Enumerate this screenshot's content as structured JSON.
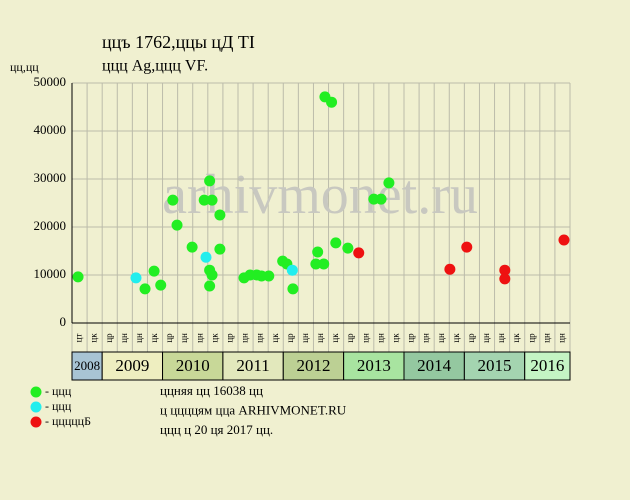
{
  "chart_data": {
    "type": "scatter",
    "title": "ццъ 1762,ццы цД TI",
    "subtitle": "ццц Ag,ццц VF.",
    "ylabel": "цц,цц",
    "watermark": "arhivmonet.ru",
    "xlim": [
      2008.5,
      2016.75
    ],
    "ylim": [
      0,
      50000
    ],
    "yticks": [
      0,
      10000,
      20000,
      30000,
      40000,
      50000
    ],
    "grid": true,
    "quarter_labels": [
      "цт",
      "цк",
      "цр",
      "цн",
      "цн",
      "цк",
      "цр",
      "цн",
      "цн",
      "цк",
      "цр",
      "цн",
      "цн",
      "цк",
      "цр",
      "цн",
      "цн",
      "цк",
      "цр",
      "цн",
      "цн",
      "цк",
      "цр",
      "цн",
      "цн",
      "цк",
      "цр",
      "цн",
      "цн",
      "цк",
      "цр",
      "цн",
      "цн"
    ],
    "year_bands": [
      {
        "label": "2008",
        "color": "#a8c4d4"
      },
      {
        "label": "2009",
        "color": "#eeeec0"
      },
      {
        "label": "2010",
        "color": "#c8d898"
      },
      {
        "label": "2011",
        "color": "#e2e8bc"
      },
      {
        "label": "2012",
        "color": "#bcd094"
      },
      {
        "label": "2013",
        "color": "#a8e4a0"
      },
      {
        "label": "2014",
        "color": "#94c8a0"
      },
      {
        "label": "2015",
        "color": "#a4d4b0"
      },
      {
        "label": "2016",
        "color": "#c4f4c4"
      }
    ],
    "series": [
      {
        "name": "- ццц",
        "color": "#22ee22",
        "x": [
          2008.6,
          2009.71,
          2009.86,
          2009.97,
          2010.17,
          2010.24,
          2010.49,
          2010.69,
          2010.78,
          2010.78,
          2010.82,
          2010.78,
          2010.82,
          2010.95,
          2010.95,
          2011.35,
          2011.45,
          2011.56,
          2011.64,
          2011.76,
          2011.99,
          2012.06,
          2012.16,
          2012.54,
          2012.57,
          2012.67,
          2012.69,
          2012.8,
          2012.87,
          2013.07,
          2013.5,
          2013.62,
          2013.75
        ],
        "values": [
          9600,
          7100,
          10800,
          7900,
          25600,
          20400,
          15800,
          25600,
          29600,
          11000,
          25600,
          7700,
          10000,
          22500,
          15400,
          9400,
          10000,
          10000,
          9800,
          9800,
          12900,
          12300,
          7100,
          12300,
          14800,
          12300,
          47100,
          46000,
          16700,
          15600,
          25800,
          25800,
          29200
        ]
      },
      {
        "name": "- ццц",
        "color": "#22eeee",
        "x": [
          2009.56,
          2010.72,
          2012.15
        ],
        "values": [
          9400,
          13700,
          11000
        ]
      },
      {
        "name": "- цццццБ",
        "color": "#ee1111",
        "x": [
          2013.25,
          2014.76,
          2015.04,
          2015.67,
          2015.67,
          2016.65
        ],
        "values": [
          14600,
          11200,
          15800,
          11000,
          9200,
          17300
        ]
      }
    ],
    "notes": [
      "ццняя цц 16038 цц",
      "ц ццццям цца ARHIVMONET.RU",
      "ццц ц 20 ця 2017 цц."
    ]
  }
}
